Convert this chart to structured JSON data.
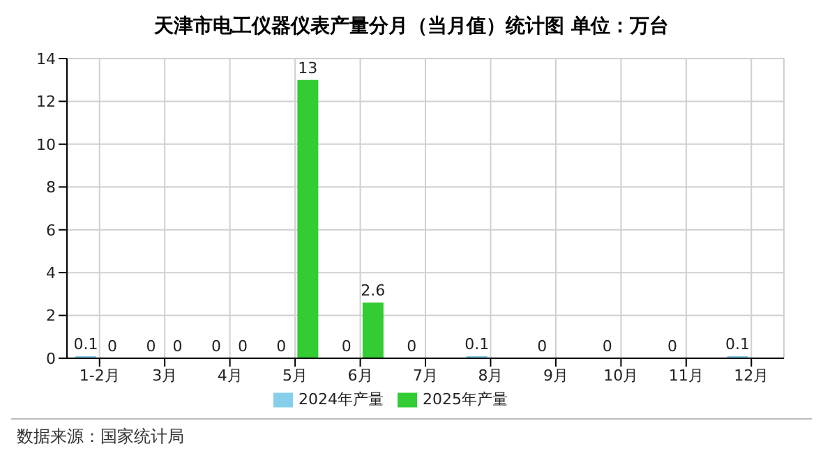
{
  "chart_data": {
    "type": "bar",
    "title": "天津市电工仪器仪表产量分月（当月值）统计图 单位：万台",
    "categories": [
      "1-2月",
      "3月",
      "4月",
      "5月",
      "6月",
      "7月",
      "8月",
      "9月",
      "10月",
      "11月",
      "12月"
    ],
    "series": [
      {
        "name": "2024年产量",
        "color": "#87ceeb",
        "values": [
          0.1,
          0,
          0,
          0,
          0,
          0,
          0.1,
          0,
          0,
          0,
          0.1
        ]
      },
      {
        "name": "2025年产量",
        "color": "#33cc33",
        "values": [
          0,
          0,
          0,
          13,
          2.6,
          null,
          null,
          null,
          null,
          null,
          null
        ]
      }
    ],
    "ylim": [
      0,
      14
    ],
    "yticks": [
      0,
      2,
      4,
      6,
      8,
      10,
      12,
      14
    ],
    "grid": true,
    "legend": "bottom",
    "data_labels": true,
    "annotations": [
      "数据来源：国家统计局"
    ]
  }
}
